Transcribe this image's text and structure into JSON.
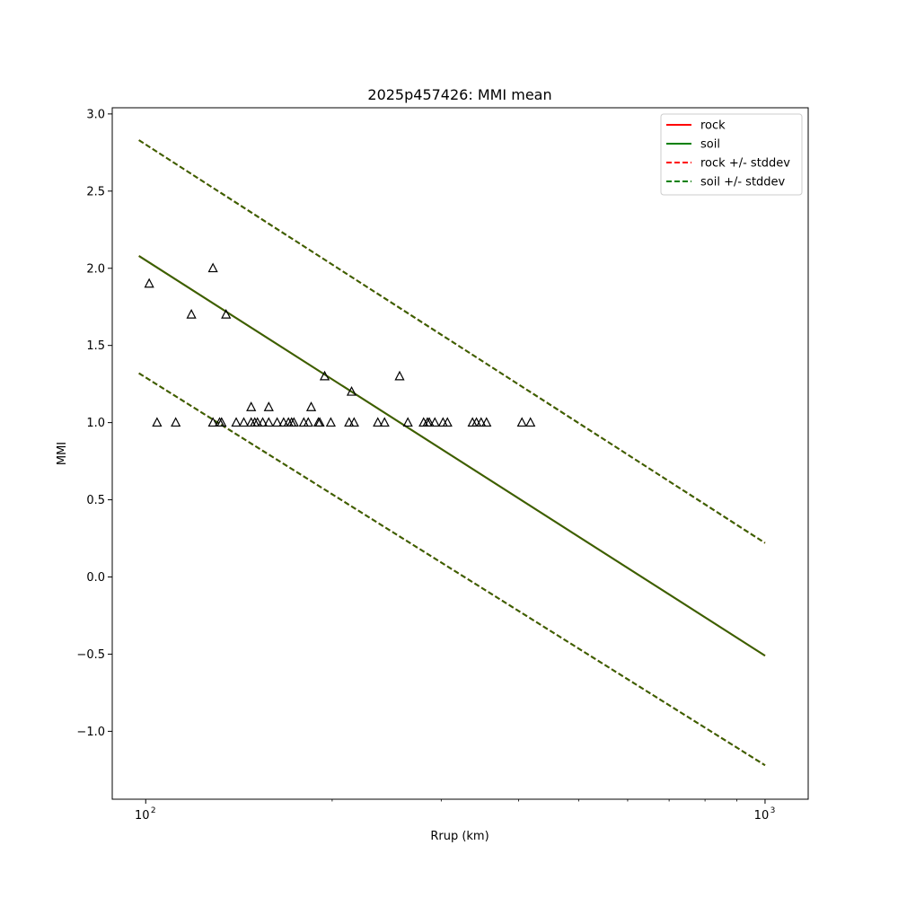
{
  "chart_data": {
    "type": "scatter",
    "title": "2025p457426: MMI mean",
    "xlabel": "Rrup (km)",
    "ylabel": "MMI",
    "x_scale": "log",
    "xlim": [
      88.3,
      1174
    ],
    "ylim": [
      -1.44,
      3.04
    ],
    "x_ticks": [
      {
        "value": 100,
        "label": "10",
        "exp": "2"
      },
      {
        "value": 1000,
        "label": "10",
        "exp": "3"
      }
    ],
    "x_minor_ticks": [
      200,
      300,
      400,
      500,
      600,
      700,
      800,
      900
    ],
    "y_ticks": [
      -1.0,
      -0.5,
      0.0,
      0.5,
      1.0,
      1.5,
      2.0,
      2.5,
      3.0
    ],
    "y_tick_labels": [
      "−1.0",
      "−0.5",
      "0.0",
      "0.5",
      "1.0",
      "1.5",
      "2.0",
      "2.5",
      "3.0"
    ],
    "grid": false,
    "legend_position": "top-right",
    "series": [
      {
        "name": "rock",
        "kind": "line",
        "color": "#ff0000",
        "dash": "solid",
        "x": [
          97.5,
          1000
        ],
        "y": [
          2.08,
          -0.51
        ]
      },
      {
        "name": "soil",
        "kind": "line",
        "color": "#008000",
        "dash": "solid",
        "x": [
          97.5,
          1000
        ],
        "y": [
          2.08,
          -0.51
        ]
      },
      {
        "name": "rock +/- stddev",
        "kind": "line",
        "color": "#ff0000",
        "dash": "dashed",
        "x": [
          97.5,
          1000
        ],
        "y": [
          2.83,
          0.22
        ],
        "x2": [
          97.5,
          1000
        ],
        "y2": [
          1.32,
          -1.22
        ]
      },
      {
        "name": "soil +/- stddev",
        "kind": "line",
        "color": "#008000",
        "dash": "dashed",
        "x": [
          97.5,
          1000
        ],
        "y": [
          2.83,
          0.22
        ],
        "x2": [
          97.5,
          1000
        ],
        "y2": [
          1.32,
          -1.22
        ]
      }
    ],
    "line_overlay_color": "#336600",
    "observations": {
      "marker": "triangle",
      "color": "#000000",
      "points": [
        [
          101.3,
          1.9
        ],
        [
          104.3,
          1.0
        ],
        [
          111.8,
          1.0
        ],
        [
          118.5,
          1.7
        ],
        [
          128.4,
          2.0
        ],
        [
          128.4,
          1.0
        ],
        [
          131.6,
          1.0
        ],
        [
          132.6,
          1.0
        ],
        [
          134.8,
          1.7
        ],
        [
          140.0,
          1.0
        ],
        [
          144.0,
          1.0
        ],
        [
          148.0,
          1.1
        ],
        [
          148.0,
          1.0
        ],
        [
          150.0,
          1.0
        ],
        [
          151.5,
          1.0
        ],
        [
          154.5,
          1.0
        ],
        [
          158.0,
          1.1
        ],
        [
          158.0,
          1.0
        ],
        [
          163.0,
          1.0
        ],
        [
          167.0,
          1.0
        ],
        [
          170.0,
          1.0
        ],
        [
          172.0,
          1.0
        ],
        [
          173.5,
          1.0
        ],
        [
          180.0,
          1.0
        ],
        [
          183.0,
          1.0
        ],
        [
          185.0,
          1.1
        ],
        [
          190.0,
          1.0
        ],
        [
          191.0,
          1.0
        ],
        [
          194.5,
          1.3
        ],
        [
          199.0,
          1.0
        ],
        [
          213.0,
          1.0
        ],
        [
          215.0,
          1.2
        ],
        [
          217.0,
          1.0
        ],
        [
          237.0,
          1.0
        ],
        [
          243.0,
          1.0
        ],
        [
          257.0,
          1.3
        ],
        [
          265.0,
          1.0
        ],
        [
          281.0,
          1.0
        ],
        [
          285.0,
          1.0
        ],
        [
          287.0,
          1.0
        ],
        [
          293.0,
          1.0
        ],
        [
          302.0,
          1.0
        ],
        [
          307.0,
          1.0
        ],
        [
          337.0,
          1.0
        ],
        [
          342.0,
          1.0
        ],
        [
          348.0,
          1.0
        ],
        [
          355.0,
          1.0
        ],
        [
          405.0,
          1.0
        ],
        [
          418.0,
          1.0
        ]
      ]
    }
  }
}
